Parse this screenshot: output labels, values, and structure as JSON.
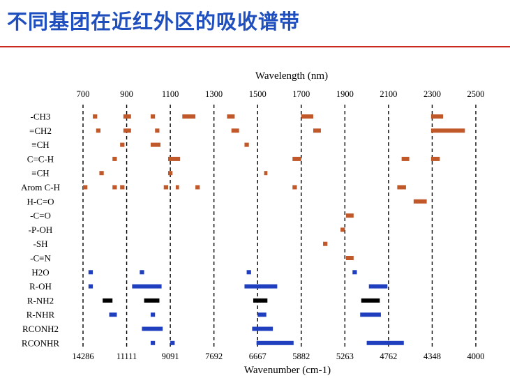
{
  "slide": {
    "title": "不同基团在近红外区的吸收谱带"
  },
  "chart_data": {
    "type": "bar",
    "subtype": "horizontal-range",
    "title": "不同基团在近红外区的吸收谱带",
    "top_axis": {
      "label": "Wavelength (nm)",
      "ticks": [
        700,
        900,
        1100,
        1300,
        1500,
        1700,
        1900,
        2100,
        2300,
        2500
      ],
      "range": [
        680,
        2510
      ]
    },
    "bottom_axis": {
      "label": "Wavenumber (cm-1)",
      "ticks": [
        {
          "wavelength": 700,
          "label": "14286"
        },
        {
          "wavelength": 900,
          "label": "11111"
        },
        {
          "wavelength": 1100,
          "label": "9091"
        },
        {
          "wavelength": 1300,
          "label": "7692"
        },
        {
          "wavelength": 1500,
          "label": "6667"
        },
        {
          "wavelength": 1700,
          "label": "5882"
        },
        {
          "wavelength": 1900,
          "label": "5263"
        },
        {
          "wavelength": 2100,
          "label": "4762"
        },
        {
          "wavelength": 2300,
          "label": "4348"
        },
        {
          "wavelength": 2500,
          "label": "4000"
        }
      ]
    },
    "dashed_gridlines_at": [
      700,
      900,
      1100,
      1300,
      1500,
      1700,
      1900,
      2100,
      2300,
      2500
    ],
    "colors": {
      "group_CH": "#c0582a",
      "group_OH": "#1f3fbf",
      "group_NH": "#000000"
    },
    "rows": [
      {
        "label": "-CH3",
        "bands": [
          {
            "start": 745,
            "end": 765,
            "color": "#c0582a"
          },
          {
            "start": 885,
            "end": 920,
            "color": "#c0582a"
          },
          {
            "start": 1010,
            "end": 1030,
            "color": "#c0582a"
          },
          {
            "start": 1155,
            "end": 1215,
            "color": "#c0582a"
          },
          {
            "start": 1360,
            "end": 1395,
            "color": "#c0582a"
          },
          {
            "start": 1700,
            "end": 1755,
            "color": "#c0582a"
          },
          {
            "start": 2295,
            "end": 2350,
            "color": "#c0582a"
          }
        ]
      },
      {
        "label": "=CH2",
        "bands": [
          {
            "start": 760,
            "end": 780,
            "color": "#c0582a"
          },
          {
            "start": 885,
            "end": 920,
            "color": "#c0582a"
          },
          {
            "start": 1030,
            "end": 1050,
            "color": "#c0582a"
          },
          {
            "start": 1380,
            "end": 1415,
            "color": "#c0582a"
          },
          {
            "start": 1755,
            "end": 1790,
            "color": "#c0582a"
          },
          {
            "start": 2295,
            "end": 2450,
            "color": "#c0582a"
          }
        ]
      },
      {
        "label": "≡CH",
        "bands": [
          {
            "start": 870,
            "end": 890,
            "color": "#c0582a"
          },
          {
            "start": 1010,
            "end": 1055,
            "color": "#c0582a"
          },
          {
            "start": 1440,
            "end": 1460,
            "color": "#c0582a"
          }
        ]
      },
      {
        "label": "C=C-H",
        "bands": [
          {
            "start": 835,
            "end": 855,
            "color": "#c0582a"
          },
          {
            "start": 1090,
            "end": 1145,
            "color": "#c0582a"
          },
          {
            "start": 1660,
            "end": 1700,
            "color": "#c0582a"
          },
          {
            "start": 2160,
            "end": 2195,
            "color": "#c0582a"
          },
          {
            "start": 2295,
            "end": 2335,
            "color": "#c0582a"
          }
        ]
      },
      {
        "label": "≡CH",
        "bands": [
          {
            "start": 775,
            "end": 795,
            "color": "#c0582a"
          },
          {
            "start": 1090,
            "end": 1110,
            "color": "#c0582a"
          },
          {
            "start": 1530,
            "end": 1545,
            "color": "#c0582a"
          }
        ]
      },
      {
        "label": "Arom  C-H",
        "bands": [
          {
            "start": 700,
            "end": 720,
            "color": "#c0582a"
          },
          {
            "start": 835,
            "end": 855,
            "color": "#c0582a"
          },
          {
            "start": 870,
            "end": 890,
            "color": "#c0582a"
          },
          {
            "start": 1070,
            "end": 1090,
            "color": "#c0582a"
          },
          {
            "start": 1125,
            "end": 1140,
            "color": "#c0582a"
          },
          {
            "start": 1215,
            "end": 1235,
            "color": "#c0582a"
          },
          {
            "start": 1660,
            "end": 1680,
            "color": "#c0582a"
          },
          {
            "start": 2140,
            "end": 2180,
            "color": "#c0582a"
          }
        ]
      },
      {
        "label": "H-C=O",
        "bands": [
          {
            "start": 2215,
            "end": 2275,
            "color": "#c0582a"
          }
        ]
      },
      {
        "label": "-C=O",
        "bands": [
          {
            "start": 1905,
            "end": 1940,
            "color": "#c0582a"
          }
        ]
      },
      {
        "label": "-P-OH",
        "bands": [
          {
            "start": 1880,
            "end": 1900,
            "color": "#c0582a"
          }
        ]
      },
      {
        "label": "-SH",
        "bands": [
          {
            "start": 1800,
            "end": 1820,
            "color": "#c0582a"
          }
        ]
      },
      {
        "label": "-C≡N",
        "bands": [
          {
            "start": 1905,
            "end": 1940,
            "color": "#c0582a"
          }
        ]
      },
      {
        "label": "H2O",
        "bands": [
          {
            "start": 725,
            "end": 745,
            "color": "#1f3fbf"
          },
          {
            "start": 960,
            "end": 980,
            "color": "#1f3fbf"
          },
          {
            "start": 1450,
            "end": 1470,
            "color": "#1f3fbf"
          },
          {
            "start": 1935,
            "end": 1955,
            "color": "#1f3fbf"
          }
        ]
      },
      {
        "label": "R-OH",
        "bands": [
          {
            "start": 725,
            "end": 745,
            "color": "#1f3fbf"
          },
          {
            "start": 925,
            "end": 1060,
            "color": "#1f3fbf"
          },
          {
            "start": 1440,
            "end": 1590,
            "color": "#1f3fbf"
          },
          {
            "start": 2010,
            "end": 2095,
            "color": "#1f3fbf"
          }
        ]
      },
      {
        "label": "R-NH2",
        "bands": [
          {
            "start": 790,
            "end": 835,
            "color": "#000000"
          },
          {
            "start": 980,
            "end": 1050,
            "color": "#000000"
          },
          {
            "start": 1480,
            "end": 1545,
            "color": "#000000"
          },
          {
            "start": 1975,
            "end": 2060,
            "color": "#000000"
          }
        ]
      },
      {
        "label": "R-NHR",
        "bands": [
          {
            "start": 820,
            "end": 855,
            "color": "#1f3fbf"
          },
          {
            "start": 1010,
            "end": 1030,
            "color": "#1f3fbf"
          },
          {
            "start": 1500,
            "end": 1540,
            "color": "#1f3fbf"
          },
          {
            "start": 1970,
            "end": 2065,
            "color": "#1f3fbf"
          }
        ]
      },
      {
        "label": "RCONH2",
        "bands": [
          {
            "start": 970,
            "end": 1065,
            "color": "#1f3fbf"
          },
          {
            "start": 1475,
            "end": 1570,
            "color": "#1f3fbf"
          }
        ]
      },
      {
        "label": "RCONHR",
        "bands": [
          {
            "start": 1010,
            "end": 1030,
            "color": "#1f3fbf"
          },
          {
            "start": 1100,
            "end": 1120,
            "color": "#1f3fbf"
          },
          {
            "start": 1495,
            "end": 1665,
            "color": "#1f3fbf"
          },
          {
            "start": 2000,
            "end": 2170,
            "color": "#1f3fbf"
          }
        ]
      }
    ]
  }
}
